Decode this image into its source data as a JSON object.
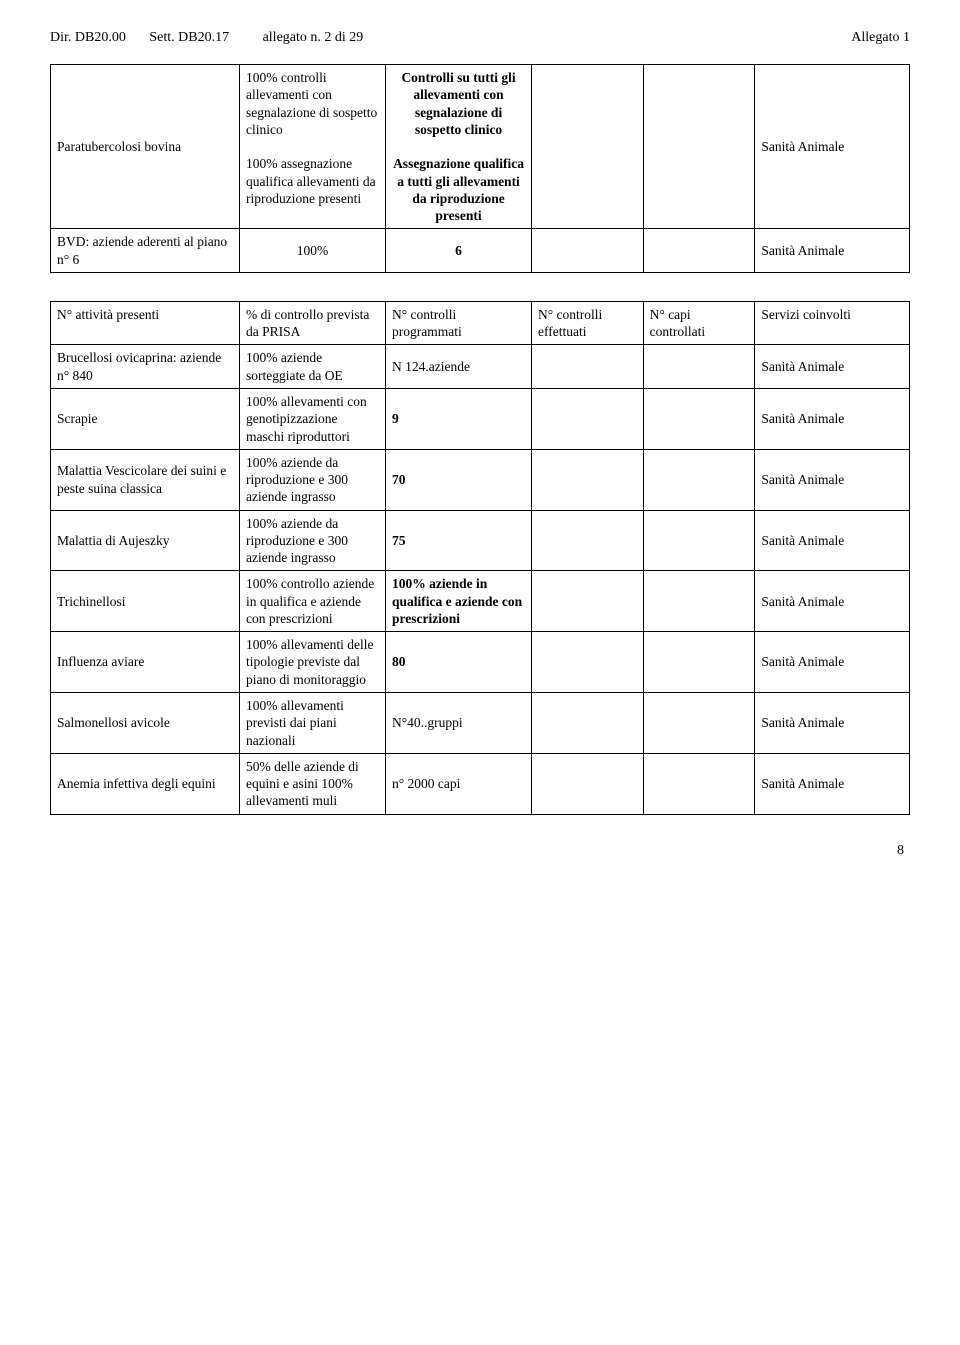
{
  "header": {
    "dir": "Dir. DB20.00",
    "sett": "Sett. DB20.17",
    "allegato_n": "allegato n. 2 di  29",
    "allegato": "Allegato 1"
  },
  "table1": {
    "rows": [
      {
        "c1": "Paratubercolosi bovina",
        "c2": "100% controlli allevamenti con segnalazione di sospetto clinico\n\n100% assegnazione qualifica allevamenti da riproduzione presenti",
        "c3_bold": "Controlli su tutti gli allevamenti con segnalazione di sospetto clinico\n\nAssegnazione qualifica a tutti gli allevamenti da riproduzione presenti",
        "c4": "",
        "c5": "",
        "c6": "Sanità Animale"
      },
      {
        "c1": "BVD: aziende aderenti al piano n° 6",
        "c2": "100%",
        "c3": "6",
        "c4": "",
        "c5": "",
        "c6": "Sanità Animale"
      }
    ]
  },
  "table2": {
    "headers": {
      "c1": "N° attività presenti",
      "c2": "% di controllo prevista da PRISA",
      "c3": "N° controlli programmati",
      "c4": "N° controlli effettuati",
      "c5": "N° capi controllati",
      "c6": "Servizi coinvolti"
    },
    "rows": [
      {
        "c1": "Brucellosi ovicaprina: aziende n° 840",
        "c2": "100% aziende sorteggiate da OE",
        "c3": "N 124.aziende",
        "c6": "Sanità Animale"
      },
      {
        "c1": "Scrapie",
        "c2": "100% allevamenti con genotipizzazione maschi riproduttori",
        "c3": "9",
        "c6": "Sanità Animale"
      },
      {
        "c1": "Malattia Vescicolare dei suini e peste suina classica",
        "c2": "100% aziende da riproduzione e 300 aziende ingrasso",
        "c3": "70",
        "c6": "Sanità Animale"
      },
      {
        "c1": "Malattia di Aujeszky",
        "c2": "100% aziende da riproduzione e 300 aziende ingrasso",
        "c3": "75",
        "c6": "Sanità Animale"
      },
      {
        "c1": "Trichinellosi",
        "c2": "100% controllo aziende in qualifica e aziende con prescrizioni",
        "c3_bold": "100% aziende in qualifica e aziende con prescrizioni",
        "c6": "Sanità Animale"
      },
      {
        "c1": "Influenza aviare",
        "c2": "100% allevamenti delle tipologie previste dal piano di monitoraggio",
        "c3": "80",
        "c6": "Sanità Animale"
      },
      {
        "c1": "Salmonellosi avicole",
        "c2": "100% allevamenti previsti dai piani nazionali",
        "c3": "N°40..gruppi",
        "c6": "Sanità Animale"
      },
      {
        "c1": "Anemia infettiva degli equini",
        "c2": "50% delle aziende di equini e asini 100% allevamenti muli",
        "c3": "n° 2000 capi",
        "c6": "Sanità Animale"
      }
    ]
  },
  "page_number": "8"
}
